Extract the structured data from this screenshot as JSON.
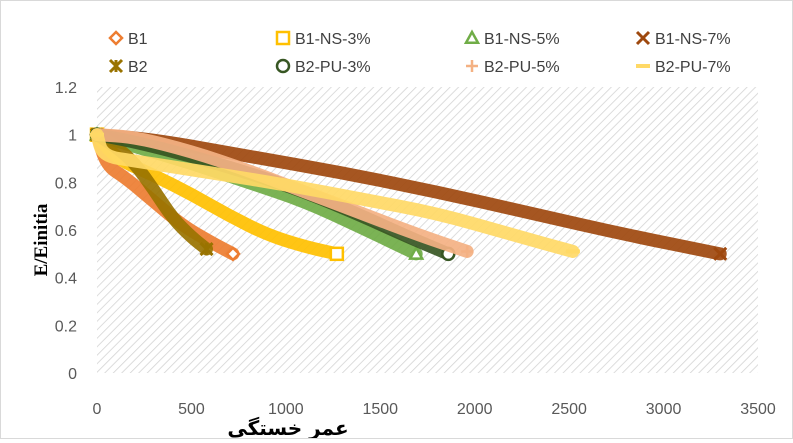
{
  "chart_data": {
    "type": "line",
    "title": "",
    "xlabel": "عمر خستگی",
    "ylabel": "E/Einitia",
    "xlim": [
      0,
      3500
    ],
    "ylim": [
      0,
      1.2
    ],
    "x_ticks": [
      "0",
      "500",
      "1000",
      "1500",
      "2000",
      "2500",
      "3000",
      "3500"
    ],
    "y_ticks": [
      "0",
      "0.2",
      "0.4",
      "0.6",
      "0.8",
      "1",
      "1.2"
    ],
    "grid": false,
    "plot_background": "diagonal-hatch",
    "legend_position": "top",
    "series": [
      {
        "name": "B1",
        "marker": "diamond-open",
        "color": "#ED7D31",
        "points": [
          [
            0,
            1.0
          ],
          [
            50,
            0.87
          ],
          [
            150,
            0.82
          ],
          [
            300,
            0.72
          ],
          [
            450,
            0.62
          ],
          [
            600,
            0.55
          ],
          [
            720,
            0.5
          ]
        ]
      },
      {
        "name": "B1-NS-3%",
        "marker": "square-open",
        "color": "#FFC000",
        "points": [
          [
            0,
            1.0
          ],
          [
            100,
            0.9
          ],
          [
            300,
            0.83
          ],
          [
            500,
            0.75
          ],
          [
            700,
            0.66
          ],
          [
            900,
            0.58
          ],
          [
            1100,
            0.53
          ],
          [
            1270,
            0.5
          ]
        ]
      },
      {
        "name": "B1-NS-5%",
        "marker": "triangle-open",
        "color": "#70AD47",
        "points": [
          [
            0,
            1.0
          ],
          [
            200,
            0.95
          ],
          [
            500,
            0.88
          ],
          [
            800,
            0.8
          ],
          [
            1100,
            0.72
          ],
          [
            1400,
            0.61
          ],
          [
            1690,
            0.5
          ]
        ]
      },
      {
        "name": "B1-NS-7%",
        "marker": "x",
        "color": "#9E480E",
        "points": [
          [
            0,
            1.0
          ],
          [
            300,
            0.98
          ],
          [
            800,
            0.91
          ],
          [
            1300,
            0.84
          ],
          [
            1800,
            0.76
          ],
          [
            2300,
            0.67
          ],
          [
            2800,
            0.58
          ],
          [
            3300,
            0.5
          ]
        ]
      },
      {
        "name": "B2",
        "marker": "star",
        "color": "#997300",
        "points": [
          [
            0,
            1.0
          ],
          [
            100,
            0.95
          ],
          [
            200,
            0.88
          ],
          [
            300,
            0.77
          ],
          [
            400,
            0.65
          ],
          [
            500,
            0.57
          ],
          [
            580,
            0.52
          ]
        ]
      },
      {
        "name": "B2-PU-3%",
        "marker": "circle-open",
        "color": "#375623",
        "points": [
          [
            0,
            1.0
          ],
          [
            200,
            0.97
          ],
          [
            500,
            0.91
          ],
          [
            800,
            0.84
          ],
          [
            1100,
            0.76
          ],
          [
            1400,
            0.66
          ],
          [
            1650,
            0.57
          ],
          [
            1860,
            0.5
          ]
        ]
      },
      {
        "name": "B2-PU-5%",
        "marker": "plus",
        "color": "#F4B183",
        "points": [
          [
            0,
            1.0
          ],
          [
            200,
            0.99
          ],
          [
            500,
            0.93
          ],
          [
            800,
            0.85
          ],
          [
            1100,
            0.76
          ],
          [
            1400,
            0.67
          ],
          [
            1700,
            0.58
          ],
          [
            1960,
            0.51
          ]
        ]
      },
      {
        "name": "B2-PU-7%",
        "marker": "dash",
        "color": "#FFD966",
        "points": [
          [
            0,
            1.0
          ],
          [
            30,
            0.91
          ],
          [
            200,
            0.89
          ],
          [
            600,
            0.84
          ],
          [
            1000,
            0.79
          ],
          [
            1400,
            0.73
          ],
          [
            1800,
            0.67
          ],
          [
            2200,
            0.58
          ],
          [
            2520,
            0.51
          ]
        ]
      }
    ]
  }
}
